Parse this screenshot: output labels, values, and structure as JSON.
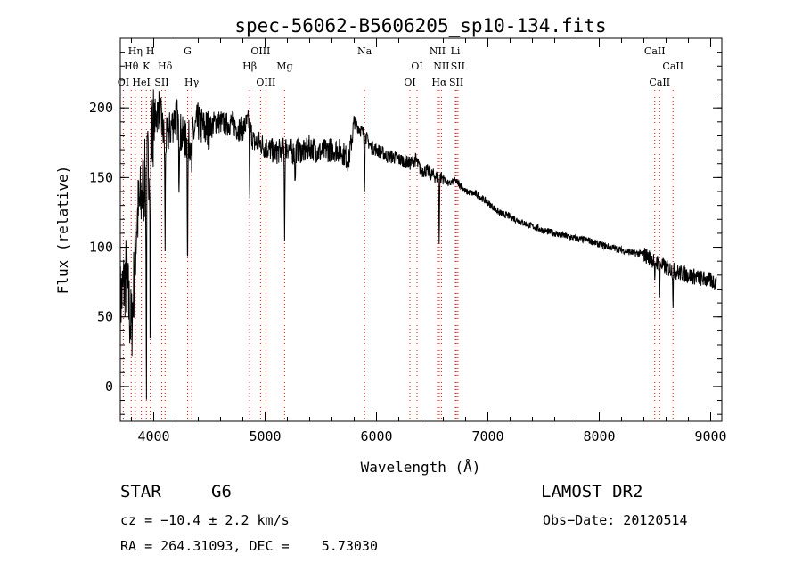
{
  "chart_data": {
    "type": "line",
    "title": "spec-56062-B5606205_sp10-134.fits",
    "xlabel": "Wavelength (Å)",
    "ylabel": "Flux (relative)",
    "xlim": [
      3700,
      9100
    ],
    "ylim": [
      -25,
      250
    ],
    "x_ticks": [
      4000,
      5000,
      6000,
      7000,
      8000,
      9000
    ],
    "y_ticks": [
      0,
      50,
      100,
      150,
      200
    ],
    "grid": false,
    "series": [
      {
        "x": [
          3700,
          3750,
          3800,
          3850,
          3900,
          3950,
          4000,
          4050,
          4100,
          4150,
          4200,
          4250,
          4300,
          4350,
          4400,
          4450,
          4500,
          4550,
          4600,
          4650,
          4700,
          4750,
          4800,
          4850,
          4900,
          4950,
          5000,
          5050,
          5100,
          5150,
          5200,
          5250,
          5300,
          5350,
          5400,
          5450,
          5500,
          5550,
          5600,
          5650,
          5700,
          5750,
          5800,
          5850,
          5900,
          5950,
          6000,
          6050,
          6100,
          6150,
          6200,
          6250,
          6300,
          6350,
          6400,
          6450,
          6500,
          6550,
          6600,
          6650,
          6700,
          6750,
          6800,
          6900,
          7000,
          7100,
          7200,
          7300,
          7400,
          7500,
          7600,
          7700,
          7800,
          7900,
          8000,
          8100,
          8200,
          8300,
          8400,
          8500,
          8550,
          8600,
          8650,
          8700,
          8800,
          8900,
          9000,
          9050
        ],
        "y": [
          60,
          80,
          40,
          120,
          140,
          160,
          190,
          200,
          175,
          185,
          195,
          180,
          175,
          180,
          190,
          185,
          185,
          190,
          190,
          188,
          190,
          185,
          185,
          190,
          175,
          175,
          172,
          170,
          168,
          170,
          172,
          168,
          170,
          168,
          172,
          170,
          168,
          170,
          170,
          170,
          168,
          162,
          190,
          185,
          180,
          172,
          170,
          168,
          165,
          165,
          163,
          162,
          160,
          163,
          155,
          155,
          152,
          150,
          150,
          145,
          148,
          145,
          140,
          138,
          132,
          125,
          122,
          118,
          115,
          112,
          110,
          108,
          106,
          105,
          102,
          100,
          98,
          96,
          95,
          90,
          88,
          85,
          84,
          82,
          80,
          78,
          76,
          75
        ]
      }
    ],
    "lines": [
      {
        "label": "OI",
        "wl": 3727,
        "row": 3
      },
      {
        "label": "Hθ",
        "wl": 3798,
        "row": 2
      },
      {
        "label": "Hη",
        "wl": 3835,
        "row": 1
      },
      {
        "label": "HeI",
        "wl": 3889,
        "row": 3
      },
      {
        "label": "K",
        "wl": 3934,
        "row": 2
      },
      {
        "label": "H",
        "wl": 3969,
        "row": 1
      },
      {
        "label": "SII",
        "wl": 4072,
        "row": 3
      },
      {
        "label": "Hδ",
        "wl": 4102,
        "row": 2
      },
      {
        "label": "G",
        "wl": 4304,
        "row": 1
      },
      {
        "label": "Hγ",
        "wl": 4341,
        "row": 3
      },
      {
        "label": "Hβ",
        "wl": 4861,
        "row": 2
      },
      {
        "label": "OIII",
        "wl": 4959,
        "row": 1
      },
      {
        "label": "OIII",
        "wl": 5007,
        "row": 3
      },
      {
        "label": "Mg",
        "wl": 5175,
        "row": 2
      },
      {
        "label": "Na",
        "wl": 5893,
        "row": 1
      },
      {
        "label": "OI",
        "wl": 6300,
        "row": 3
      },
      {
        "label": "OI",
        "wl": 6364,
        "row": 2
      },
      {
        "label": "NII",
        "wl": 6548,
        "row": 1
      },
      {
        "label": "Hα",
        "wl": 6563,
        "row": 3
      },
      {
        "label": "NII",
        "wl": 6583,
        "row": 2
      },
      {
        "label": "Li",
        "wl": 6708,
        "row": 1
      },
      {
        "label": "SII",
        "wl": 6717,
        "row": 3
      },
      {
        "label": "SII",
        "wl": 6731,
        "row": 2
      },
      {
        "label": "CaII",
        "wl": 8498,
        "row": 1
      },
      {
        "label": "CaII",
        "wl": 8542,
        "row": 3
      },
      {
        "label": "CaII",
        "wl": 8662,
        "row": 2
      }
    ],
    "line_color": "#ff0000"
  },
  "info": {
    "class": "STAR",
    "subclass": "G6",
    "survey": "LAMOST DR2",
    "cz": "cz = −10.4 ± 2.2 km/s",
    "obsdate": "Obs−Date: 20120514",
    "radec": "RA = 264.31093, DEC =    5.73030"
  }
}
